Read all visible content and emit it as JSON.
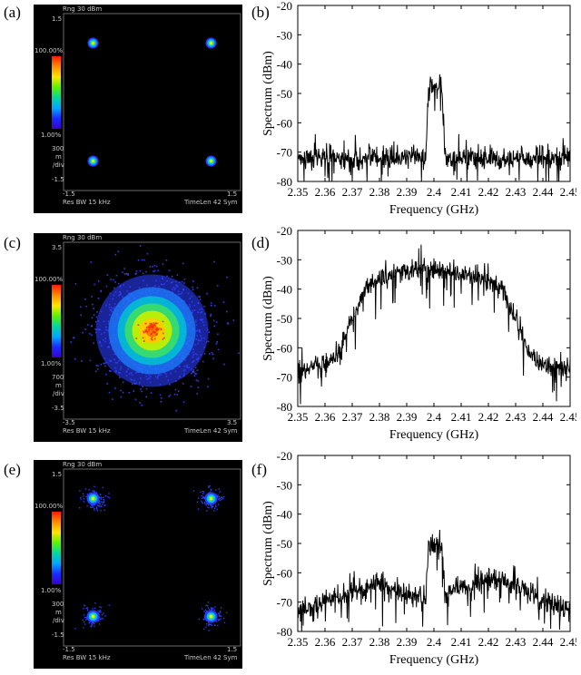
{
  "panels": [
    {
      "label": "(a)",
      "const": {
        "title": "Rng 30 dBm",
        "ymax": "1.5",
        "ymin": "-1.5",
        "xmin": "-1.5",
        "xmax": "1.5",
        "cb_top": "100.00%",
        "cb_bottom": "1.00%",
        "scale": [
          "300",
          "m",
          "/div"
        ],
        "resbw": "Res BW 15 kHz",
        "timelen": "TimeLen 42  Sym"
      }
    },
    {
      "label": "(c)",
      "const": {
        "title": "Rng 30 dBm",
        "ymax": "3.5",
        "ymin": "-3.5",
        "xmin": "-3.5",
        "xmax": "3.5",
        "cb_top": "100.00%",
        "cb_bottom": "1.00%",
        "scale": [
          "700",
          "m",
          "/div"
        ],
        "resbw": "Res BW 15 kHz",
        "timelen": "TimeLen 42  Sym"
      }
    },
    {
      "label": "(e)",
      "const": {
        "title": "Rng 30 dBm",
        "ymax": "1.5",
        "ymin": "-1.5",
        "xmin": "-1.5",
        "xmax": "1.5",
        "cb_top": "100.00%",
        "cb_bottom": "1.00%",
        "scale": [
          "300",
          "m",
          "/div"
        ],
        "resbw": "Res BW 15 kHz",
        "timelen": "TimeLen 42  Sym"
      }
    }
  ],
  "spectrum_labels": [
    "(b)",
    "(d)",
    "(f)"
  ],
  "chart_data": [
    {
      "type": "scatter",
      "name": "constellation-a",
      "xlim": [
        -1.5,
        1.5
      ],
      "ylim": [
        -1.5,
        1.5
      ],
      "points": [
        [
          -1,
          1
        ],
        [
          1,
          1
        ],
        [
          -1,
          -1
        ],
        [
          1,
          -1
        ]
      ],
      "spread": "tight"
    },
    {
      "type": "line",
      "xlabel": "Frequency (GHz)",
      "ylabel": "Spectrum (dBm)",
      "xlim": [
        2.35,
        2.45
      ],
      "ylim": [
        -80,
        -20
      ],
      "xticks": [
        "2.35",
        "2.36",
        "2.37",
        "2.38",
        "2.39",
        "2.4",
        "2.41",
        "2.42",
        "2.43",
        "2.44",
        "2.45"
      ],
      "yticks": [
        "-20",
        "-30",
        "-40",
        "-50",
        "-60",
        "-70",
        "-80"
      ],
      "x": [
        2.35,
        2.397,
        2.398,
        2.403,
        2.404,
        2.45
      ],
      "y": [
        -72,
        -72,
        -48,
        -48,
        -72,
        -72
      ]
    },
    {
      "type": "scatter",
      "name": "constellation-c",
      "xlim": [
        -3.5,
        3.5
      ],
      "ylim": [
        -3.5,
        3.5
      ],
      "points": [
        [
          0,
          0
        ]
      ],
      "spread": "wide-gaussian"
    },
    {
      "type": "line",
      "xlabel": "Frequency (GHz)",
      "ylabel": "Spectrum (dBm)",
      "xlim": [
        2.35,
        2.45
      ],
      "ylim": [
        -80,
        -20
      ],
      "xticks": [
        "2.35",
        "2.36",
        "2.37",
        "2.38",
        "2.39",
        "2.4",
        "2.41",
        "2.42",
        "2.43",
        "2.44",
        "2.45"
      ],
      "yticks": [
        "-20",
        "-30",
        "-40",
        "-50",
        "-60",
        "-70",
        "-80"
      ],
      "x": [
        2.35,
        2.36,
        2.365,
        2.37,
        2.375,
        2.38,
        2.39,
        2.4,
        2.41,
        2.42,
        2.425,
        2.43,
        2.435,
        2.44,
        2.45
      ],
      "y": [
        -67,
        -66,
        -62,
        -50,
        -40,
        -36,
        -34,
        -33,
        -35,
        -37,
        -40,
        -50,
        -62,
        -66,
        -67
      ]
    },
    {
      "type": "scatter",
      "name": "constellation-e",
      "xlim": [
        -1.5,
        1.5
      ],
      "ylim": [
        -1.5,
        1.5
      ],
      "points": [
        [
          -1,
          1
        ],
        [
          1,
          1
        ],
        [
          -1,
          -1
        ],
        [
          1,
          -1
        ]
      ],
      "spread": "medium"
    },
    {
      "type": "line",
      "xlabel": "Frequency (GHz)",
      "ylabel": "Spectrum (dBm)",
      "xlim": [
        2.35,
        2.45
      ],
      "ylim": [
        -80,
        -20
      ],
      "xticks": [
        "2.35",
        "2.36",
        "2.37",
        "2.38",
        "2.39",
        "2.4",
        "2.41",
        "2.42",
        "2.43",
        "2.44",
        "2.45"
      ],
      "yticks": [
        "-20",
        "-30",
        "-40",
        "-50",
        "-60",
        "-70",
        "-80"
      ],
      "x": [
        2.35,
        2.36,
        2.37,
        2.38,
        2.39,
        2.397,
        2.398,
        2.403,
        2.404,
        2.41,
        2.42,
        2.43,
        2.44,
        2.45
      ],
      "y": [
        -73,
        -70,
        -66,
        -64,
        -67,
        -69,
        -51,
        -51,
        -69,
        -65,
        -63,
        -64,
        -70,
        -73
      ]
    }
  ]
}
